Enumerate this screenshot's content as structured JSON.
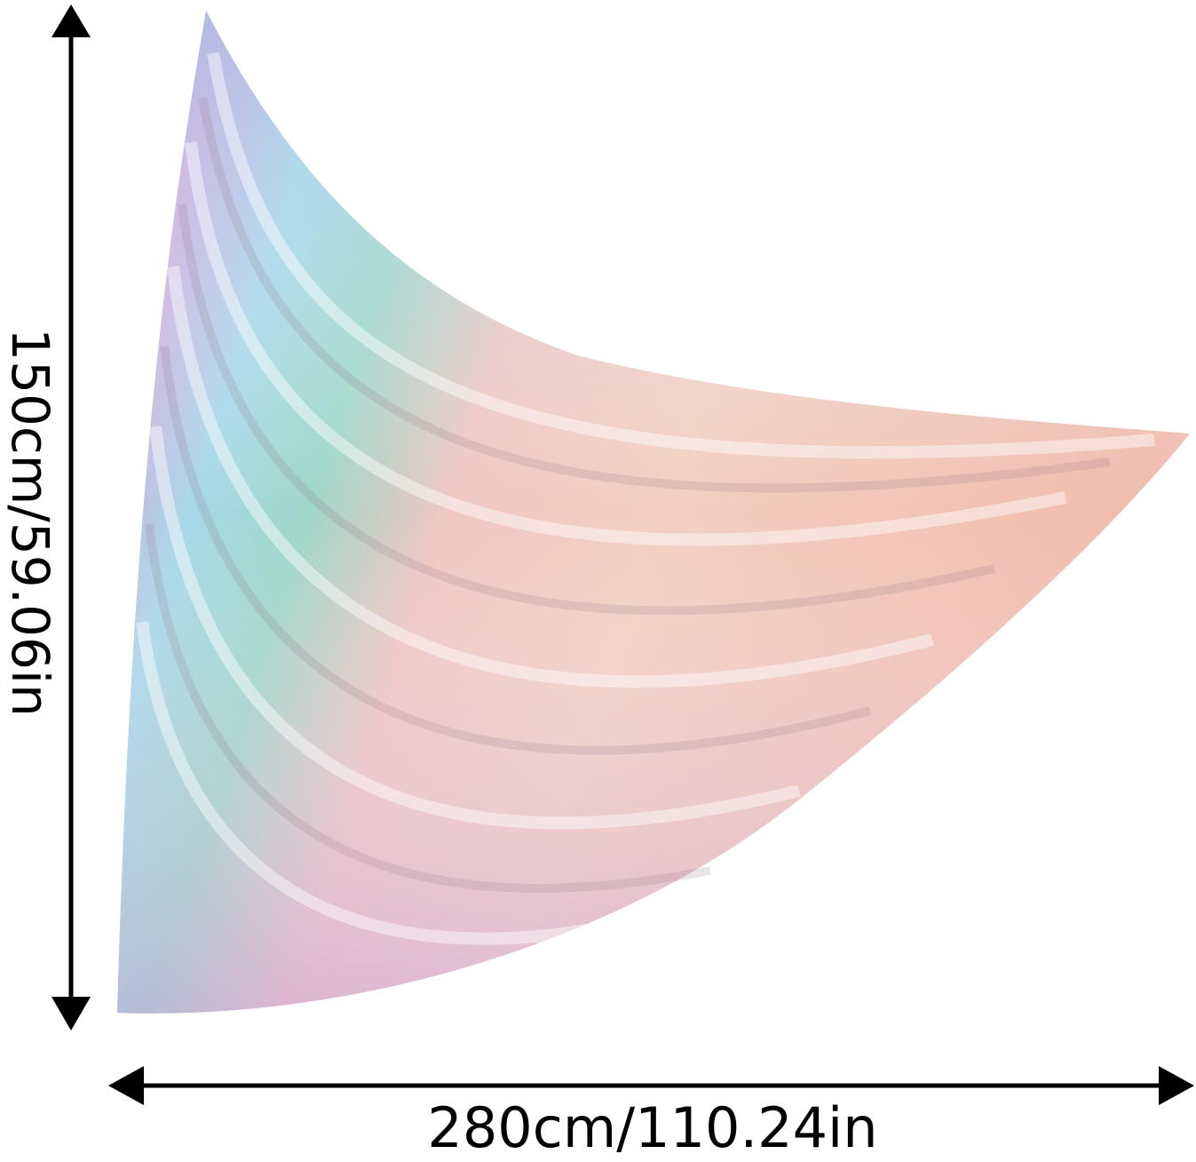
{
  "dimensions": {
    "height": "150cm/59.06in",
    "width": "280cm/110.24in"
  }
}
